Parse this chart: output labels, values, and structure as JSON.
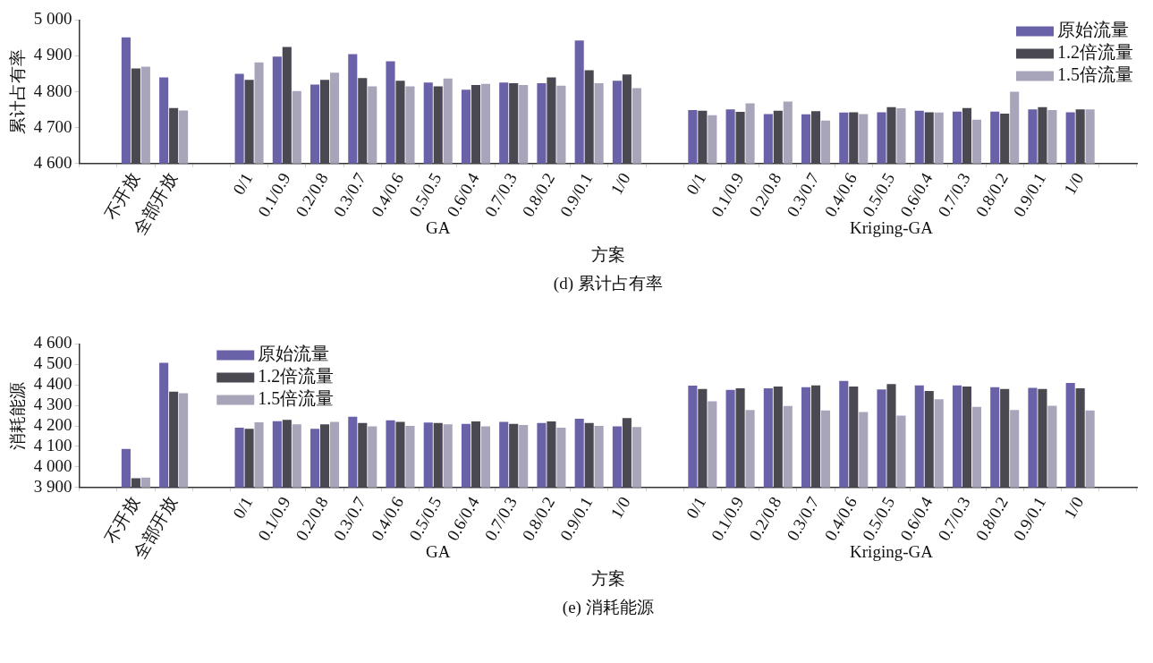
{
  "chart_data": [
    {
      "type": "bar",
      "title": "(d) 累计占有率",
      "xlabel": "方案",
      "ylabel": "累计占有率",
      "annotations": [
        "GA",
        "Kriging-GA"
      ],
      "categories": [
        null,
        "不开放",
        "全部开放",
        null,
        "0/1",
        "0.1/0.9",
        "0.2/0.8",
        "0.3/0.7",
        "0.4/0.6",
        "0.5/0.5",
        "0.6/0.4",
        "0.7/0.3",
        "0.8/0.2",
        "0.9/0.1",
        "1/0",
        null,
        "0/1",
        "0.1/0.9",
        "0.2/0.8",
        "0.3/0.7",
        "0.4/0.6",
        "0.5/0.5",
        "0.6/0.4",
        "0.7/0.3",
        "0.8/0.2",
        "0.9/0.1",
        "1/0",
        null
      ],
      "series": [
        {
          "name": "原始流量",
          "color": "#6a62a8",
          "values": [
            null,
            4952,
            4840,
            null,
            4850,
            4898,
            4820,
            4905,
            4885,
            4826,
            4806,
            4826,
            4824,
            4943,
            4831,
            null,
            4749,
            4751,
            4738,
            4737,
            4742,
            4743,
            4747,
            4745,
            4745,
            4751,
            4743,
            null
          ]
        },
        {
          "name": "1.2倍流量",
          "color": "#4a4850",
          "values": [
            null,
            4865,
            4755,
            null,
            4833,
            4925,
            4833,
            4838,
            4831,
            4815,
            4819,
            4824,
            4840,
            4860,
            4848,
            null,
            4747,
            4744,
            4747,
            4746,
            4743,
            4757,
            4743,
            4755,
            4739,
            4757,
            4751,
            null
          ]
        },
        {
          "name": "1.5倍流量",
          "color": "#a8a5bb",
          "values": [
            null,
            4870,
            4748,
            null,
            4882,
            4802,
            4853,
            4815,
            4815,
            4837,
            4822,
            4819,
            4817,
            4824,
            4810,
            null,
            4735,
            4768,
            4773,
            4720,
            4738,
            4754,
            4742,
            4722,
            4800,
            4749,
            4751,
            null
          ]
        }
      ],
      "ylim": [
        4600,
        5000
      ],
      "yticks": [
        {
          "value": 4600,
          "label": "4 600"
        },
        {
          "value": 4700,
          "label": "4 700"
        },
        {
          "value": 4800,
          "label": "4 800"
        },
        {
          "value": 4900,
          "label": "4 900"
        },
        {
          "value": 5000,
          "label": "5 000"
        }
      ],
      "grid": false,
      "legend": "top right"
    },
    {
      "type": "bar",
      "title": "(e) 消耗能源",
      "xlabel": "方案",
      "ylabel": "消耗能源",
      "annotations": [
        "GA",
        "Kriging-GA"
      ],
      "categories": [
        null,
        "不开放",
        "全部开放",
        null,
        "0/1",
        "0.1/0.9",
        "0.2/0.8",
        "0.3/0.7",
        "0.4/0.6",
        "0.5/0.5",
        "0.6/0.4",
        "0.7/0.3",
        "0.8/0.2",
        "0.9/0.1",
        "1/0",
        null,
        "0/1",
        "0.1/0.9",
        "0.2/0.8",
        "0.3/0.7",
        "0.4/0.6",
        "0.5/0.5",
        "0.6/0.4",
        "0.7/0.3",
        "0.8/0.2",
        "0.9/0.1",
        "1/0",
        null
      ],
      "series": [
        {
          "name": "原始流量",
          "color": "#6a62a8",
          "values": [
            null,
            4088,
            4508,
            null,
            4192,
            4223,
            4186,
            4245,
            4227,
            4217,
            4210,
            4220,
            4214,
            4235,
            4198,
            null,
            4397,
            4376,
            4383,
            4389,
            4420,
            4378,
            4398,
            4398,
            4389,
            4386,
            4410,
            null
          ]
        },
        {
          "name": "1.2倍流量",
          "color": "#4a4850",
          "values": [
            null,
            3945,
            4367,
            null,
            4186,
            4230,
            4208,
            4214,
            4220,
            4214,
            4222,
            4210,
            4222,
            4214,
            4238,
            null,
            4380,
            4383,
            4392,
            4398,
            4392,
            4404,
            4370,
            4392,
            4380,
            4380,
            4383,
            null
          ]
        },
        {
          "name": "1.5倍流量",
          "color": "#a8a5bb",
          "values": [
            null,
            3948,
            4360,
            null,
            4218,
            4208,
            4220,
            4198,
            4200,
            4208,
            4198,
            4205,
            4192,
            4200,
            4195,
            null,
            4320,
            4278,
            4297,
            4275,
            4268,
            4250,
            4330,
            4293,
            4278,
            4298,
            4275,
            null
          ]
        }
      ],
      "ylim": [
        3900,
        4600
      ],
      "yticks": [
        {
          "value": 3900,
          "label": "3 900"
        },
        {
          "value": 4000,
          "label": "4 000"
        },
        {
          "value": 4100,
          "label": "4 100"
        },
        {
          "value": 4200,
          "label": "4 200"
        },
        {
          "value": 4300,
          "label": "4 300"
        },
        {
          "value": 4400,
          "label": "4 400"
        },
        {
          "value": 4500,
          "label": "4 500"
        },
        {
          "value": 4600,
          "label": "4 600"
        }
      ],
      "grid": false,
      "legend": "top left"
    }
  ]
}
